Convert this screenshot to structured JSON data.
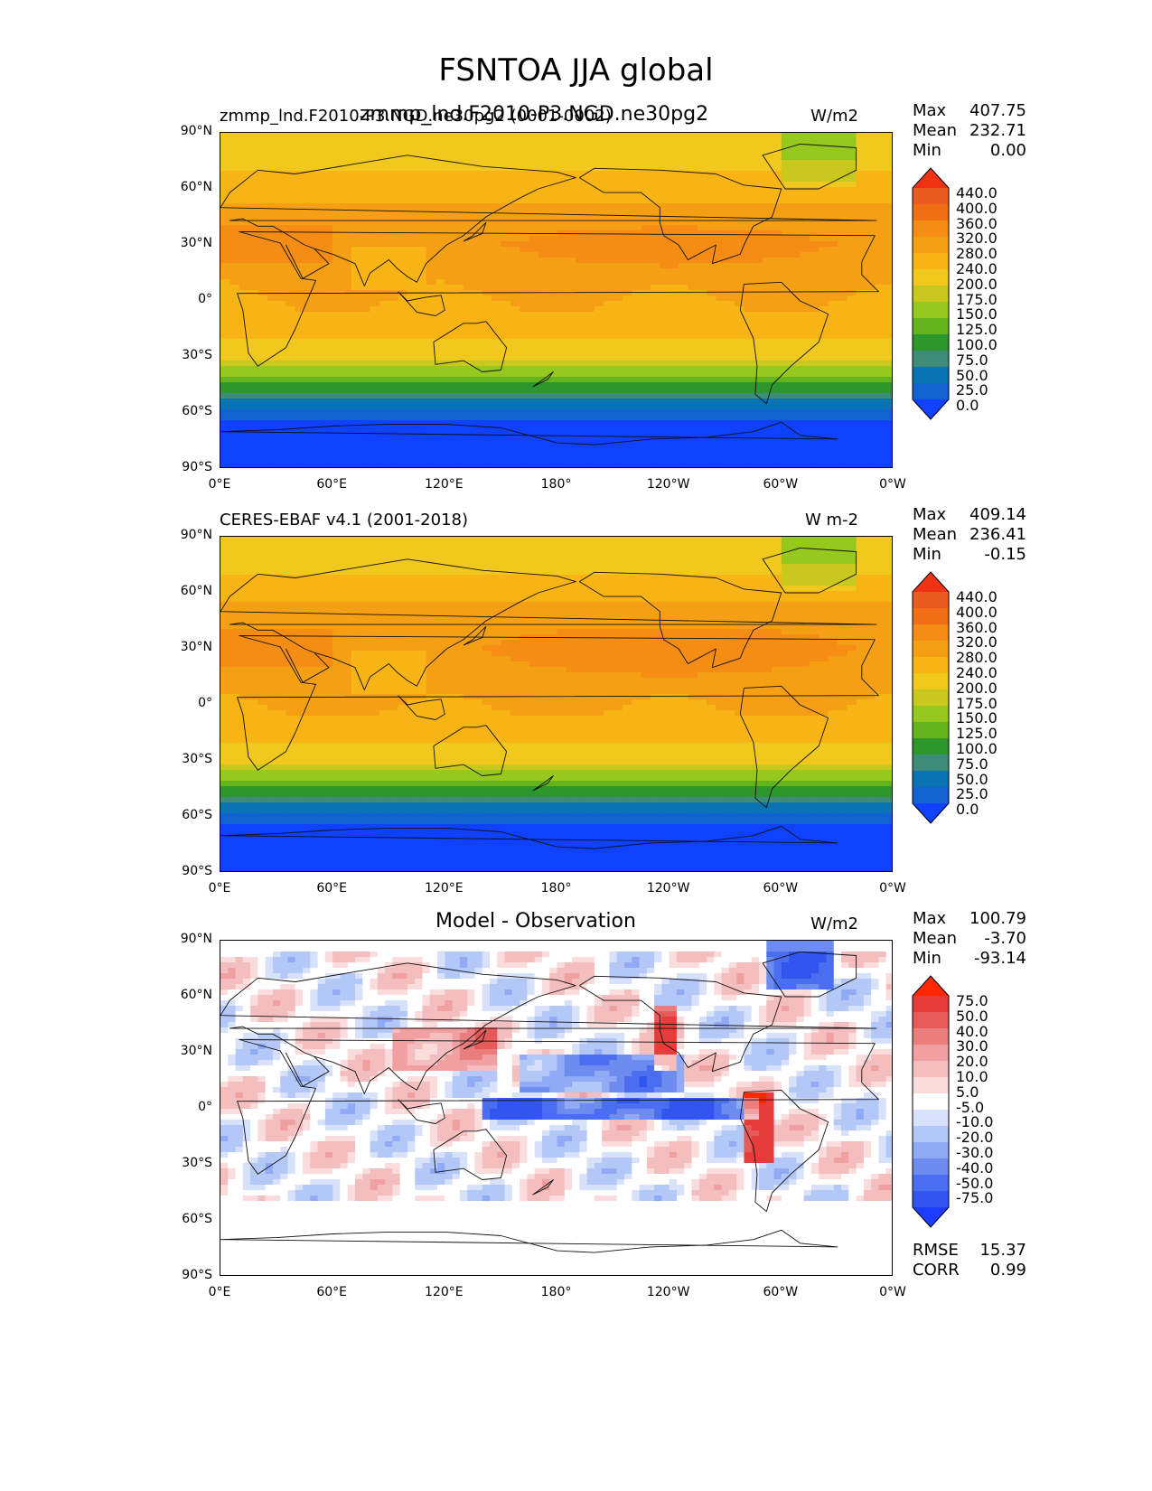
{
  "figure_title": "FSNTOA JJA global",
  "panels": [
    {
      "id": "model",
      "left_title": "zmmp_lnd.F2010-P3.NGD.ne30pg2 (0001-0002)",
      "center_title": "zmmp_lnd.F2010-P3.NGD.ne30pg2",
      "units": "W/m2",
      "stats": {
        "max_label": "Max",
        "max": "407.75",
        "mean_label": "Mean",
        "mean": "232.71",
        "min_label": "Min",
        "min": "0.00"
      },
      "colorbar_ticks": [
        "440.0",
        "400.0",
        "360.0",
        "320.0",
        "280.0",
        "240.0",
        "200.0",
        "175.0",
        "150.0",
        "125.0",
        "100.0",
        "75.0",
        "50.0",
        "25.0",
        "0.0"
      ]
    },
    {
      "id": "obs",
      "left_title": "CERES-EBAF v4.1 (2001-2018)",
      "units": "W m-2",
      "stats": {
        "max_label": "Max",
        "max": "409.14",
        "mean_label": "Mean",
        "mean": "236.41",
        "min_label": "Min",
        "min": "-0.15"
      },
      "colorbar_ticks": [
        "440.0",
        "400.0",
        "360.0",
        "320.0",
        "280.0",
        "240.0",
        "200.0",
        "175.0",
        "150.0",
        "125.0",
        "100.0",
        "75.0",
        "50.0",
        "25.0",
        "0.0"
      ]
    },
    {
      "id": "diff",
      "center_title": "Model - Observation",
      "units": "W/m2",
      "stats": {
        "max_label": "Max",
        "max": "100.79",
        "mean_label": "Mean",
        "mean": "-3.70",
        "min_label": "Min",
        "min": "-93.14"
      },
      "colorbar_ticks": [
        "75.0",
        "50.0",
        "40.0",
        "30.0",
        "20.0",
        "10.0",
        "5.0",
        "-5.0",
        "-10.0",
        "-20.0",
        "-30.0",
        "-40.0",
        "-50.0",
        "-75.0"
      ],
      "rmse_label": "RMSE",
      "rmse": "15.37",
      "corr_label": "CORR",
      "corr": "0.99"
    }
  ],
  "y_ticks": [
    "90°N",
    "60°N",
    "30°N",
    "0°",
    "30°S",
    "60°S",
    "90°S"
  ],
  "x_ticks": [
    "0°E",
    "60°E",
    "120°E",
    "180°",
    "120°W",
    "60°W",
    "0°W"
  ],
  "colors": {
    "abs_scale": [
      "#0f41ff",
      "#1262d2",
      "#0a73b4",
      "#3c8c78",
      "#2d962d",
      "#64b41e",
      "#96c81e",
      "#c8c81e",
      "#f0c81e",
      "#f8b414",
      "#f5a014",
      "#f58c14",
      "#f06e14",
      "#eb5a1e",
      "#f03214"
    ],
    "diff_scale": [
      "#1e3cff",
      "#3255f0",
      "#4b6ef0",
      "#6e8cf0",
      "#91aaf5",
      "#b4c8f8",
      "#d7e1fa",
      "#ffffff",
      "#fadcdc",
      "#f5bebe",
      "#f0a0a0",
      "#eb7d7d",
      "#e65a5a",
      "#e63c3c",
      "#ff2800"
    ]
  },
  "chart_data": [
    {
      "type": "heatmap",
      "title": "zmmp_lnd.F2010-P3.NGD.ne30pg2",
      "subtitle": "zmmp_lnd.F2010-P3.NGD.ne30pg2 (0001-0002)",
      "units": "W/m2",
      "x_range": [
        0,
        360
      ],
      "y_range": [
        -90,
        90
      ],
      "levels": [
        0,
        25,
        50,
        75,
        100,
        125,
        150,
        175,
        200,
        240,
        280,
        320,
        360,
        400,
        440
      ],
      "stats": {
        "max": 407.75,
        "mean": 232.71,
        "min": 0.0
      },
      "zonal_mean_profile": {
        "lat": [
          90,
          80,
          70,
          60,
          45,
          30,
          15,
          0,
          -15,
          -30,
          -45,
          -55,
          -65,
          -80,
          -90
        ],
        "value": [
          210,
          225,
          240,
          265,
          300,
          320,
          300,
          280,
          260,
          210,
          120,
          60,
          20,
          5,
          0
        ]
      }
    },
    {
      "type": "heatmap",
      "title": "CERES-EBAF v4.1 (2001-2018)",
      "units": "W m-2",
      "x_range": [
        0,
        360
      ],
      "y_range": [
        -90,
        90
      ],
      "levels": [
        0,
        25,
        50,
        75,
        100,
        125,
        150,
        175,
        200,
        240,
        280,
        320,
        360,
        400,
        440
      ],
      "stats": {
        "max": 409.14,
        "mean": 236.41,
        "min": -0.15
      },
      "zonal_mean_profile": {
        "lat": [
          90,
          80,
          70,
          60,
          45,
          30,
          15,
          0,
          -15,
          -30,
          -45,
          -55,
          -65,
          -80,
          -90
        ],
        "value": [
          210,
          225,
          240,
          270,
          305,
          325,
          305,
          285,
          262,
          212,
          122,
          62,
          20,
          5,
          0
        ]
      }
    },
    {
      "type": "heatmap",
      "title": "Model - Observation",
      "units": "W/m2",
      "x_range": [
        0,
        360
      ],
      "y_range": [
        -90,
        90
      ],
      "levels": [
        -75,
        -50,
        -40,
        -30,
        -20,
        -10,
        -5,
        5,
        10,
        20,
        30,
        40,
        50,
        75
      ],
      "stats": {
        "max": 100.79,
        "mean": -3.7,
        "min": -93.14,
        "rmse": 15.37,
        "corr": 0.99
      }
    }
  ]
}
